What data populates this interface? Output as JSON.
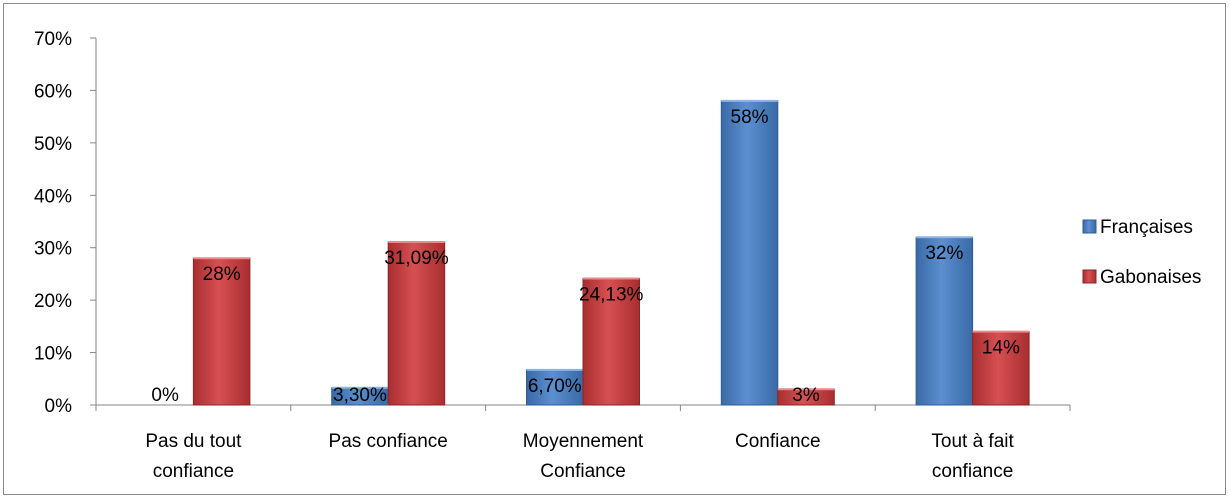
{
  "chart_data": {
    "type": "bar",
    "categories": [
      [
        "Pas du tout",
        "confiance"
      ],
      [
        "Pas confiance"
      ],
      [
        "Moyennement",
        "Confiance"
      ],
      [
        "Confiance"
      ],
      [
        "Tout à fait",
        "confiance"
      ]
    ],
    "series": [
      {
        "name": "Françaises",
        "color": "#4a7ebb",
        "values": [
          0,
          3.3,
          6.7,
          58,
          32
        ],
        "labels": [
          "0%",
          "3,30%",
          "6,70%",
          "58%",
          "32%"
        ]
      },
      {
        "name": "Gabonaises",
        "color": "#c0393b",
        "values": [
          28,
          31.09,
          24.13,
          3,
          14
        ],
        "labels": [
          "28%",
          "31,09%",
          "24,13%",
          "3%",
          "14%"
        ]
      }
    ],
    "ylim": [
      0,
      70
    ],
    "yticks": [
      "0%",
      "10%",
      "20%",
      "30%",
      "40%",
      "50%",
      "60%",
      "70%"
    ],
    "grid": false,
    "legend_position": "right",
    "title": "",
    "xlabel": "",
    "ylabel": ""
  }
}
